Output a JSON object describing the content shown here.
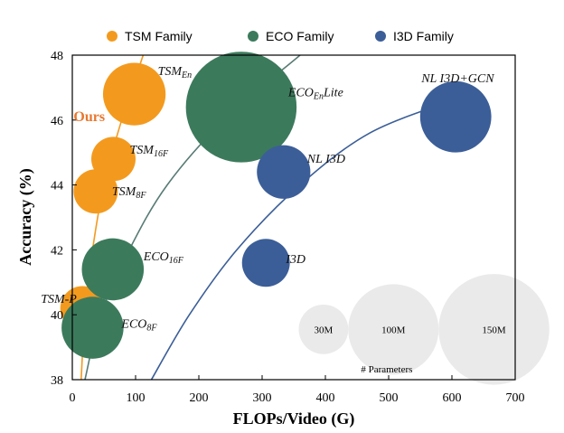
{
  "chart_data": {
    "type": "scatter",
    "xlabel": "FLOPs/Video (G)",
    "ylabel": "Accuracy (%)",
    "xlim": [
      0,
      700
    ],
    "ylim": [
      38,
      48
    ],
    "x_ticks": [
      0,
      100,
      200,
      300,
      400,
      500,
      600,
      700
    ],
    "y_ticks": [
      38,
      40,
      42,
      44,
      46,
      48
    ],
    "grid": false,
    "legend_position": "top",
    "legend": [
      {
        "name": "TSM Family",
        "color": "#f39a1e"
      },
      {
        "name": "ECO Family",
        "color": "#3c7a5c"
      },
      {
        "name": "I3D Family",
        "color": "#3b5e98"
      }
    ],
    "series": [
      {
        "name": "TSM Family",
        "color": "#f39a1e",
        "points": [
          {
            "label": "TSM-P",
            "x": 16,
            "y": 40.2,
            "params_m": 24
          },
          {
            "label": "TSM8F",
            "x": 37,
            "y": 43.8,
            "params_m": 24
          },
          {
            "label": "TSM16F",
            "x": 65,
            "y": 44.8,
            "params_m": 24
          },
          {
            "label": "TSMEn",
            "x": 98,
            "y": 46.8,
            "params_m": 48
          }
        ]
      },
      {
        "name": "ECO Family",
        "color": "#3c7a5c",
        "points": [
          {
            "label": "ECO8F",
            "x": 32,
            "y": 39.6,
            "params_m": 47
          },
          {
            "label": "ECO16F",
            "x": 64,
            "y": 41.4,
            "params_m": 47
          },
          {
            "label": "ECOEnLite",
            "x": 267,
            "y": 46.4,
            "params_m": 150
          }
        ]
      },
      {
        "name": "I3D Family",
        "color": "#3b5e98",
        "points": [
          {
            "label": "I3D",
            "x": 306,
            "y": 41.6,
            "params_m": 28
          },
          {
            "label": "NL I3D",
            "x": 334,
            "y": 44.4,
            "params_m": 35
          },
          {
            "label": "NL I3D+GCN",
            "x": 606,
            "y": 46.1,
            "params_m": 62
          }
        ]
      }
    ],
    "trend_curves": [
      {
        "family": "TSM Family",
        "color": "#f39a1e",
        "points": [
          [
            14,
            38
          ],
          [
            20,
            40
          ],
          [
            32,
            42
          ],
          [
            50,
            44
          ],
          [
            78,
            46
          ],
          [
            112,
            48
          ]
        ]
      },
      {
        "family": "ECO Family",
        "color": "#587b74",
        "points": [
          [
            20,
            38
          ],
          [
            45,
            40
          ],
          [
            90,
            42
          ],
          [
            150,
            44
          ],
          [
            240,
            46
          ],
          [
            360,
            48
          ]
        ]
      },
      {
        "family": "I3D Family",
        "color": "#3b5e98",
        "points": [
          [
            125,
            38
          ],
          [
            185,
            40
          ],
          [
            260,
            42
          ],
          [
            360,
            44
          ],
          [
            470,
            45.6
          ],
          [
            600,
            46.6
          ]
        ]
      }
    ],
    "size_legend": {
      "title": "# Parameters",
      "entries": [
        {
          "label": "30M",
          "params_m": 30
        },
        {
          "label": "100M",
          "params_m": 100
        },
        {
          "label": "150M",
          "params_m": 150
        }
      ]
    },
    "annotation": {
      "text": "Ours",
      "x": 2,
      "y": 46.0,
      "color": "#e8772e"
    }
  }
}
